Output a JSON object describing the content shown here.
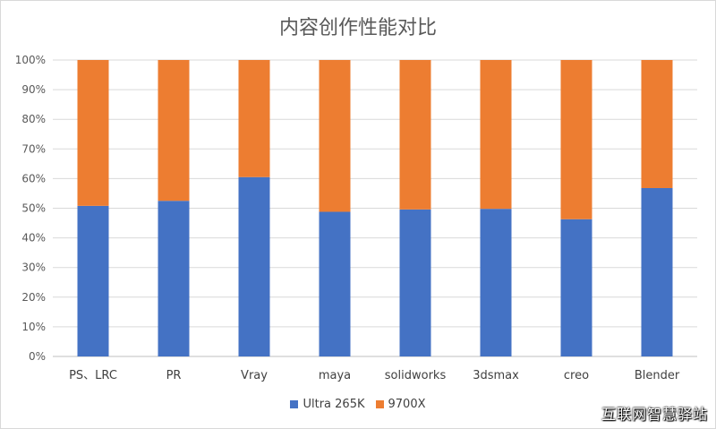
{
  "chart_data": {
    "type": "bar",
    "stacked": true,
    "title": "内容创作性能对比",
    "categories": [
      "PS、LRC",
      "PR",
      "Vray",
      "maya",
      "solidworks",
      "3dsmax",
      "creo",
      "Blender"
    ],
    "series": [
      {
        "name": "Ultra 265K",
        "color": "#4472C4",
        "values": [
          50.8,
          52.5,
          60.5,
          48.8,
          49.6,
          49.8,
          46.3,
          56.8
        ]
      },
      {
        "name": "9700X",
        "color": "#ED7D31",
        "values": [
          49.2,
          47.5,
          39.5,
          51.2,
          50.4,
          50.2,
          53.7,
          43.2
        ]
      }
    ],
    "yticks": [
      "0%",
      "10%",
      "20%",
      "30%",
      "40%",
      "50%",
      "60%",
      "70%",
      "80%",
      "90%",
      "100%"
    ],
    "ylim": [
      0,
      100
    ],
    "grid": true,
    "legend_position": "bottom"
  },
  "watermark": "互联网智慧驿站"
}
